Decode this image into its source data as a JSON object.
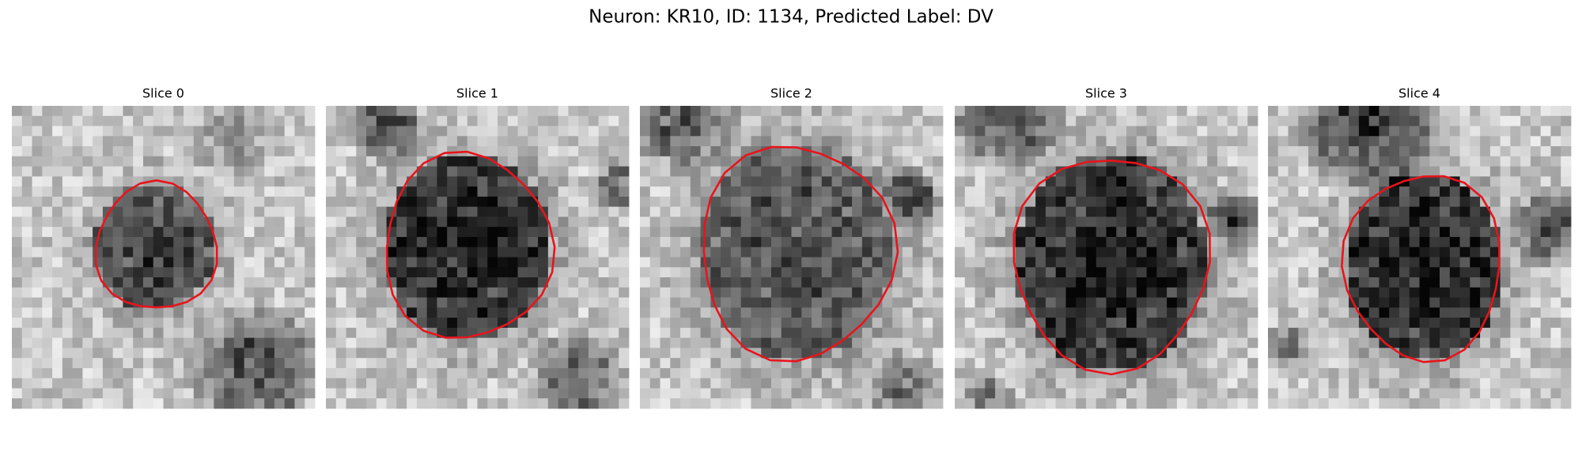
{
  "header": {
    "title": "Neuron: KR10, ID: 1134, Predicted Label: DV"
  },
  "panels": [
    {
      "title": "Slice 0"
    },
    {
      "title": "Slice 1"
    },
    {
      "title": "Slice 2"
    },
    {
      "title": "Slice 3"
    },
    {
      "title": "Slice 4"
    }
  ]
}
